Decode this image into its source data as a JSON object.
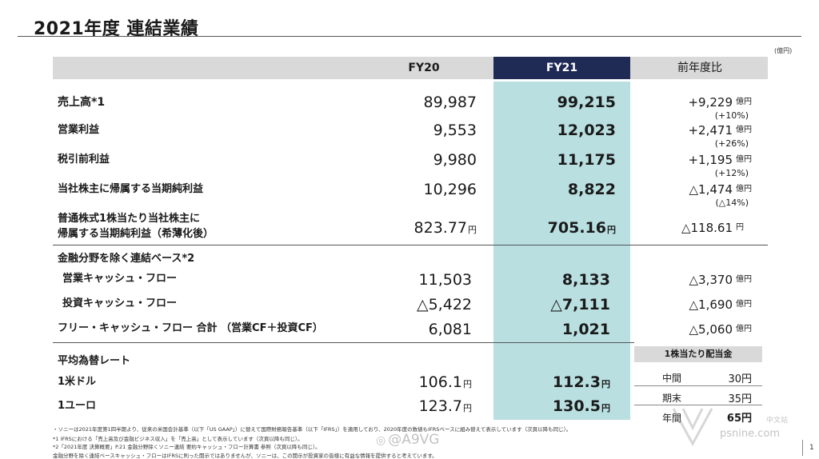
{
  "title": "2021年度 連結業績",
  "unit": "(億円)",
  "columns": {
    "fy20": "FY20",
    "fy21": "FY21",
    "change": "前年度比"
  },
  "rows": [
    {
      "label": "売上高*1",
      "fy20": "89,987",
      "fy21": "99,215",
      "change": "+9,229",
      "unit": "億円",
      "pct": "(+10%)"
    },
    {
      "label": "営業利益",
      "fy20": "9,553",
      "fy21": "12,023",
      "change": "+2,471",
      "unit": "億円",
      "pct": "(+26%)"
    },
    {
      "label": "税引前利益",
      "fy20": "9,980",
      "fy21": "11,175",
      "change": "+1,195",
      "unit": "億円",
      "pct": "(+12%)"
    },
    {
      "label": "当社株主に帰属する当期純利益",
      "fy20": "10,296",
      "fy21": "8,822",
      "change": "△1,474",
      "unit": "億円",
      "pct": "(△14%)"
    }
  ],
  "eps": {
    "label_line1": "普通株式1株当たり当社株主に",
    "label_line2": "帰属する当期純利益（希薄化後）",
    "fy20": "823.77",
    "fy21": "705.16",
    "yen": "円",
    "change": "△118.61",
    "unit": "円"
  },
  "cf_section": {
    "title": "金融分野を除く連結ベース*2",
    "rows": [
      {
        "label": "営業キャッシュ・フロー",
        "fy20": "11,503",
        "fy21": "8,133",
        "change": "△3,370",
        "unit": "億円"
      },
      {
        "label": "投資キャッシュ・フロー",
        "fy20": "△5,422",
        "fy21": "△7,111",
        "change": "△1,690",
        "unit": "億円"
      },
      {
        "label": "フリー・キャッシュ・フロー 合計 （営業CF＋投資CF）",
        "fy20": "6,081",
        "fy21": "1,021",
        "change": "△5,060",
        "unit": "億円"
      }
    ]
  },
  "fx_section": {
    "title": "平均為替レート",
    "rows": [
      {
        "label": "1米ドル",
        "fy20": "106.1",
        "fy21": "112.3",
        "yen": "円"
      },
      {
        "label": "1ユーロ",
        "fy20": "123.7",
        "fy21": "130.5",
        "yen": "円"
      }
    ]
  },
  "dividend": {
    "title": "1株当たり配当金",
    "rows": [
      {
        "label": "中間",
        "value": "30円"
      },
      {
        "label": "期末",
        "value": "35円"
      },
      {
        "label": "年間",
        "value": "65円"
      }
    ]
  },
  "footnotes": [
    "・ソニーは2021年度第1四半期より、従来の米国会計基準（以下「US GAAP」）に替えて国際財務報告基準（以下「IFRS」）を適用しており、2020年度の数値もIFRSベースに組み替えて表示しています（次頁以降も同じ）。",
    "*1 IFRSにおける「売上高及び金融ビジネス収入」を「売上高」として表示しています（次頁以降も同じ）。",
    "*2「2021年度 決算概要」P.21 金融分野除くソニー連結 要約キャッシュ・フロー計算書 参照（次頁以降も同じ）。",
    "金融分野を除く連結ベースキャッシュ・フローはIFRSに則った開示ではありませんが、ソニーは、この開示が投資家の皆様に有益な情報を提供すると考えています。"
  ],
  "page_number": "1",
  "watermarks": {
    "weibo": "@A9VG",
    "site": "psnine.com",
    "site_cn": "中文站"
  }
}
